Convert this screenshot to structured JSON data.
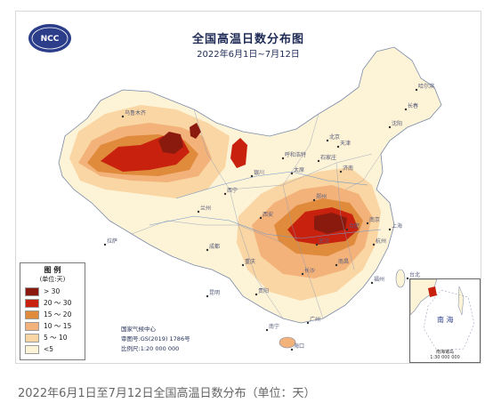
{
  "map": {
    "title": "全国高温日数分布图",
    "subtitle": "2022年6月1日~7月12日",
    "logo_text": "NCC",
    "legend": {
      "title": "图 例",
      "unit": "(单位:天)",
      "items": [
        {
          "label": "> 30",
          "color": "#8b1a0e"
        },
        {
          "label": "20 ～ 30",
          "color": "#c8220f"
        },
        {
          "label": "15 ～ 20",
          "color": "#e08a3c"
        },
        {
          "label": "10 ～ 15",
          "color": "#f3b27a"
        },
        {
          "label": "5 ～ 10",
          "color": "#f9d6a3"
        },
        {
          "label": "<5",
          "color": "#fdf3d6"
        }
      ]
    },
    "org": "国家气候中心",
    "approval": "审图号:GS(2019) 1786号",
    "scale": "比例尺:1:20 000 000",
    "inset": {
      "sea_label": "南 海",
      "title": "南海诸岛",
      "scale": "1:30 000 000"
    },
    "cities": [
      "乌鲁木齐",
      "拉萨",
      "西宁",
      "兰州",
      "银川",
      "呼和浩特",
      "北京",
      "天津",
      "石家庄",
      "太原",
      "济南",
      "郑州",
      "西安",
      "成都",
      "重庆",
      "武汉",
      "合肥",
      "南京",
      "上海",
      "杭州",
      "长沙",
      "南昌",
      "福州",
      "贵阳",
      "昆明",
      "南宁",
      "广州",
      "海口",
      "沈阳",
      "长春",
      "哈尔滨",
      "台北"
    ]
  },
  "caption": "2022年6月1日至7月12日全国高温日数分布（单位：天）"
}
